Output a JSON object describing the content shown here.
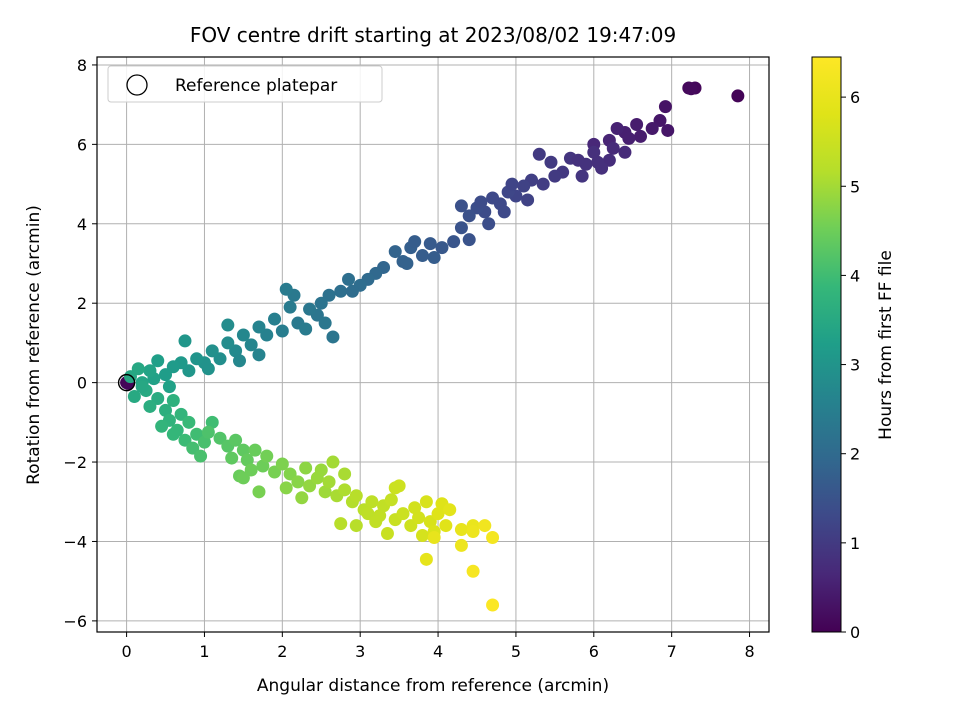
{
  "chart_data": {
    "type": "scatter",
    "title": "FOV centre drift starting at 2023/08/02 19:47:09",
    "xlabel": "Angular distance from reference (arcmin)",
    "ylabel": "Rotation from reference (arcmin)",
    "xlim": [
      -0.38,
      8.25
    ],
    "ylim": [
      -6.28,
      8.2
    ],
    "xticks": [
      0,
      1,
      2,
      3,
      4,
      5,
      6,
      7,
      8
    ],
    "yticks": [
      -6,
      -4,
      -2,
      0,
      2,
      4,
      6,
      8
    ],
    "grid": true,
    "legend": {
      "position": "top-left",
      "entries": [
        "Reference platepar"
      ]
    },
    "reference_point": {
      "x": 0,
      "y": 0
    },
    "colorbar": {
      "label": "Hours from first FF file",
      "range": [
        0,
        6.45
      ],
      "ticks": [
        0,
        1,
        2,
        3,
        4,
        5,
        6
      ],
      "colormap": "viridis"
    },
    "series": [
      {
        "points": [
          [
            0,
            0,
            0.05
          ],
          [
            0.02,
            -0.02,
            0.08
          ],
          [
            7.85,
            7.22,
            0.05
          ],
          [
            7.3,
            7.42,
            0.1
          ],
          [
            7.22,
            7.42,
            0.12
          ],
          [
            7.25,
            7.4,
            0.15
          ],
          [
            6.92,
            6.95,
            0.3
          ],
          [
            6.85,
            6.6,
            0.35
          ],
          [
            6.95,
            6.35,
            0.35
          ],
          [
            6.75,
            6.4,
            0.4
          ],
          [
            6.55,
            6.5,
            0.45
          ],
          [
            6.4,
            6.3,
            0.5
          ],
          [
            6.3,
            6.4,
            0.55
          ],
          [
            6.2,
            6.1,
            0.6
          ],
          [
            6.0,
            6.0,
            0.65
          ],
          [
            6.6,
            6.2,
            0.45
          ],
          [
            6.45,
            6.15,
            0.5
          ],
          [
            6.4,
            5.8,
            0.7
          ],
          [
            6.2,
            5.6,
            0.75
          ],
          [
            6.0,
            5.8,
            0.8
          ],
          [
            5.9,
            5.5,
            0.85
          ],
          [
            5.7,
            5.65,
            0.9
          ],
          [
            5.6,
            5.3,
            0.95
          ],
          [
            5.45,
            5.55,
            1.0
          ],
          [
            5.3,
            5.75,
            1.0
          ],
          [
            6.1,
            5.4,
            0.8
          ],
          [
            5.85,
            5.2,
            0.9
          ],
          [
            5.5,
            5.2,
            1.0
          ],
          [
            5.35,
            5.0,
            1.05
          ],
          [
            5.8,
            5.6,
            0.85
          ],
          [
            6.05,
            5.55,
            0.8
          ],
          [
            6.25,
            5.9,
            0.7
          ],
          [
            5.2,
            5.1,
            1.1
          ],
          [
            5.1,
            4.95,
            1.15
          ],
          [
            5.0,
            4.7,
            1.2
          ],
          [
            4.9,
            4.8,
            1.25
          ],
          [
            4.8,
            4.5,
            1.3
          ],
          [
            4.7,
            4.65,
            1.3
          ],
          [
            4.6,
            4.3,
            1.35
          ],
          [
            4.5,
            4.4,
            1.4
          ],
          [
            4.4,
            4.2,
            1.45
          ],
          [
            4.85,
            4.3,
            1.3
          ],
          [
            4.65,
            4.0,
            1.4
          ],
          [
            4.3,
            4.45,
            1.45
          ],
          [
            4.95,
            5.0,
            1.2
          ],
          [
            5.15,
            4.6,
            1.15
          ],
          [
            4.55,
            4.55,
            1.35
          ],
          [
            4.3,
            3.9,
            1.5
          ],
          [
            4.2,
            3.55,
            1.55
          ],
          [
            4.05,
            3.4,
            1.6
          ],
          [
            3.9,
            3.5,
            1.65
          ],
          [
            3.8,
            3.2,
            1.7
          ],
          [
            3.65,
            3.4,
            1.75
          ],
          [
            3.55,
            3.05,
            1.8
          ],
          [
            3.45,
            3.3,
            1.85
          ],
          [
            3.3,
            2.9,
            1.9
          ],
          [
            3.6,
            3.0,
            1.8
          ],
          [
            3.95,
            3.15,
            1.7
          ],
          [
            4.4,
            3.6,
            1.5
          ],
          [
            3.2,
            2.75,
            1.95
          ],
          [
            3.1,
            2.6,
            2.0
          ],
          [
            3.7,
            3.55,
            1.7
          ],
          [
            3.0,
            2.45,
            2.05
          ],
          [
            2.85,
            2.6,
            2.1
          ],
          [
            2.75,
            2.3,
            2.1
          ],
          [
            2.6,
            2.2,
            2.15
          ],
          [
            2.5,
            2.0,
            2.2
          ],
          [
            2.45,
            1.7,
            2.25
          ],
          [
            2.35,
            1.85,
            2.3
          ],
          [
            2.2,
            1.5,
            2.35
          ],
          [
            2.1,
            1.9,
            2.4
          ],
          [
            2.0,
            1.3,
            2.45
          ],
          [
            2.15,
            2.2,
            2.35
          ],
          [
            2.3,
            1.35,
            2.4
          ],
          [
            2.55,
            1.5,
            2.3
          ],
          [
            2.65,
            1.15,
            2.25
          ],
          [
            1.9,
            1.6,
            2.5
          ],
          [
            1.8,
            1.2,
            2.55
          ],
          [
            2.05,
            2.35,
            2.4
          ],
          [
            2.9,
            2.3,
            2.05
          ],
          [
            1.7,
            1.4,
            2.6
          ],
          [
            1.6,
            0.95,
            2.65
          ],
          [
            1.5,
            1.2,
            2.7
          ],
          [
            1.4,
            0.8,
            2.75
          ],
          [
            1.3,
            1.0,
            2.8
          ],
          [
            1.2,
            0.6,
            2.85
          ],
          [
            1.1,
            0.8,
            2.9
          ],
          [
            1.0,
            0.5,
            2.95
          ],
          [
            0.9,
            0.6,
            3.0
          ],
          [
            1.05,
            0.35,
            2.95
          ],
          [
            0.8,
            0.3,
            3.05
          ],
          [
            0.75,
            1.05,
            3.05
          ],
          [
            1.3,
            1.45,
            2.8
          ],
          [
            0.7,
            0.5,
            3.1
          ],
          [
            1.45,
            0.55,
            2.7
          ],
          [
            1.7,
            0.7,
            2.6
          ],
          [
            0.6,
            0.4,
            3.15
          ],
          [
            0.5,
            0.2,
            3.2
          ],
          [
            0.4,
            0.55,
            3.25
          ],
          [
            0.35,
            0.1,
            3.3
          ],
          [
            0.3,
            0.3,
            3.35
          ],
          [
            0.2,
            0.0,
            3.4
          ],
          [
            0.15,
            0.35,
            3.45
          ],
          [
            0.1,
            -0.35,
            3.5
          ],
          [
            0.25,
            -0.2,
            3.5
          ],
          [
            0.4,
            -0.4,
            3.55
          ],
          [
            0.55,
            -0.1,
            3.3
          ],
          [
            0.05,
            0.15,
            3.45
          ],
          [
            0.3,
            -0.6,
            3.6
          ],
          [
            0.2,
            -0.1,
            3.45
          ],
          [
            0.5,
            -0.7,
            3.65
          ],
          [
            0.6,
            -0.45,
            3.7
          ],
          [
            0.55,
            -0.95,
            3.75
          ],
          [
            0.7,
            -0.8,
            3.8
          ],
          [
            0.65,
            -1.2,
            3.85
          ],
          [
            0.8,
            -1.0,
            3.9
          ],
          [
            0.75,
            -1.45,
            3.95
          ],
          [
            0.9,
            -1.3,
            4.0
          ],
          [
            0.85,
            -1.65,
            4.05
          ],
          [
            1.0,
            -1.5,
            4.1
          ],
          [
            0.95,
            -1.85,
            4.1
          ],
          [
            0.45,
            -1.1,
            3.8
          ],
          [
            0.6,
            -1.3,
            3.85
          ],
          [
            1.1,
            -1.0,
            4.0
          ],
          [
            1.05,
            -1.25,
            4.15
          ],
          [
            1.2,
            -1.4,
            4.2
          ],
          [
            1.3,
            -1.6,
            4.25
          ],
          [
            1.4,
            -1.45,
            4.3
          ],
          [
            1.5,
            -1.7,
            4.35
          ],
          [
            1.35,
            -1.9,
            4.35
          ],
          [
            1.55,
            -1.95,
            4.4
          ],
          [
            1.65,
            -1.7,
            4.45
          ],
          [
            1.75,
            -2.1,
            4.5
          ],
          [
            1.8,
            -1.85,
            4.55
          ],
          [
            1.9,
            -2.25,
            4.6
          ],
          [
            1.6,
            -2.2,
            4.5
          ],
          [
            1.45,
            -2.35,
            4.45
          ],
          [
            1.7,
            -2.75,
            4.6
          ],
          [
            1.5,
            -2.4,
            4.5
          ],
          [
            2.0,
            -2.05,
            4.65
          ],
          [
            2.1,
            -2.3,
            4.7
          ],
          [
            2.2,
            -2.5,
            4.75
          ],
          [
            2.3,
            -2.15,
            4.8
          ],
          [
            2.35,
            -2.6,
            4.85
          ],
          [
            2.45,
            -2.4,
            4.9
          ],
          [
            2.55,
            -2.75,
            4.95
          ],
          [
            2.5,
            -2.2,
            4.9
          ],
          [
            2.6,
            -2.5,
            5.0
          ],
          [
            2.7,
            -2.85,
            5.05
          ],
          [
            2.65,
            -2.0,
            5.0
          ],
          [
            2.25,
            -2.9,
            4.85
          ],
          [
            2.05,
            -2.65,
            4.75
          ],
          [
            2.8,
            -2.7,
            5.1
          ],
          [
            2.9,
            -3.0,
            5.15
          ],
          [
            2.95,
            -2.85,
            5.2
          ],
          [
            3.05,
            -3.2,
            5.25
          ],
          [
            3.15,
            -3.0,
            5.3
          ],
          [
            3.25,
            -3.35,
            5.35
          ],
          [
            3.3,
            -3.1,
            5.35
          ],
          [
            2.75,
            -3.55,
            5.2
          ],
          [
            2.95,
            -3.6,
            5.2
          ],
          [
            3.1,
            -3.3,
            5.3
          ],
          [
            2.8,
            -2.3,
            5.05
          ],
          [
            3.4,
            -2.95,
            5.4
          ],
          [
            3.2,
            -3.5,
            5.35
          ],
          [
            3.45,
            -3.45,
            5.45
          ],
          [
            3.55,
            -3.3,
            5.5
          ],
          [
            3.65,
            -3.6,
            5.55
          ],
          [
            3.75,
            -3.4,
            5.6
          ],
          [
            3.8,
            -3.85,
            5.65
          ],
          [
            3.9,
            -3.5,
            5.7
          ],
          [
            3.95,
            -3.75,
            5.75
          ],
          [
            4.0,
            -3.3,
            5.8
          ],
          [
            3.85,
            -3.0,
            5.7
          ],
          [
            3.7,
            -3.15,
            5.6
          ],
          [
            3.5,
            -2.6,
            5.55
          ],
          [
            3.45,
            -2.65,
            5.5
          ],
          [
            3.35,
            -3.8,
            5.45
          ],
          [
            4.05,
            -3.05,
            5.8
          ],
          [
            4.1,
            -3.6,
            5.85
          ],
          [
            4.15,
            -3.2,
            5.9
          ],
          [
            3.85,
            -4.45,
            5.95
          ],
          [
            4.3,
            -3.7,
            6.0
          ],
          [
            4.45,
            -3.6,
            6.05
          ],
          [
            4.45,
            -3.75,
            6.1
          ],
          [
            4.3,
            -4.1,
            6.1
          ],
          [
            4.6,
            -3.6,
            6.2
          ],
          [
            4.7,
            -3.9,
            6.25
          ],
          [
            4.45,
            -4.75,
            6.3
          ],
          [
            4.7,
            -5.6,
            6.4
          ],
          [
            3.95,
            -3.9,
            6.0
          ]
        ]
      }
    ]
  }
}
